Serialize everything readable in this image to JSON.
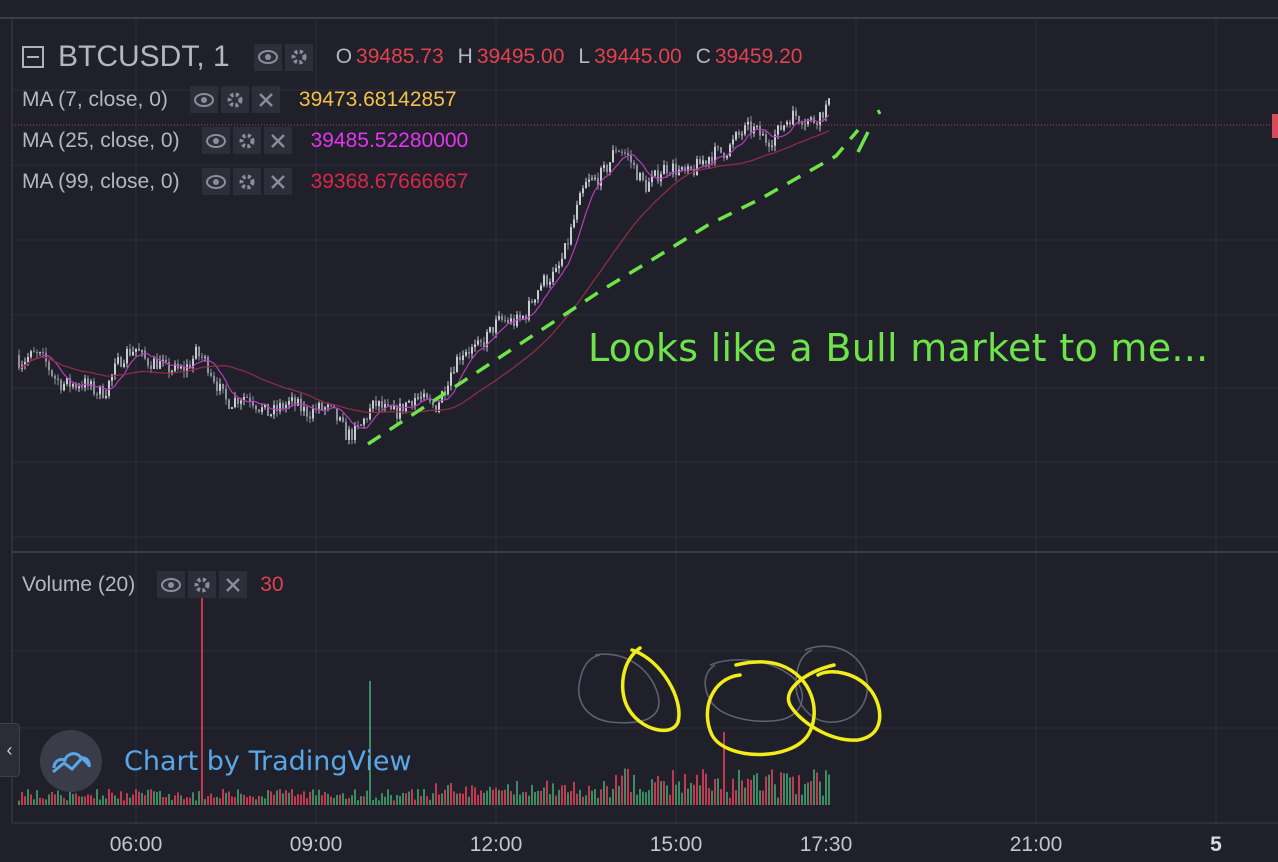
{
  "symbol": "BTCUSDT, 1",
  "ohlc": [
    {
      "label": "O",
      "value": "39485.73"
    },
    {
      "label": "H",
      "value": "39495.00"
    },
    {
      "label": "L",
      "value": "39445.00"
    },
    {
      "label": "C",
      "value": "39459.20"
    }
  ],
  "indicators": [
    {
      "name": "MA (7, close, 0)",
      "value": "39473.68142857",
      "color": "#f5c04a"
    },
    {
      "name": "MA (25, close, 0)",
      "value": "39485.52280000",
      "color": "#e535ef"
    },
    {
      "name": "MA (99, close, 0)",
      "value": "39368.67666667",
      "color": "#d8284a"
    }
  ],
  "volume": {
    "name": "Volume (20)",
    "value": "30",
    "color": "#e0424f"
  },
  "annotation": "Looks like a Bull market to me...",
  "watermark": "Chart by TradingView",
  "side_tab": "‹",
  "colors": {
    "background": "#1f2029",
    "up": "#3e8a62",
    "down": "#c23a4f",
    "annotation": "#6fe34a",
    "highlight": "#f2ec1b",
    "label_red": "#e0424f"
  },
  "chart_data": {
    "type": "candlestick",
    "x_ticks": [
      "06:00",
      "09:00",
      "12:00",
      "15:00",
      "17:30",
      "21:00",
      "5"
    ],
    "price_series": {
      "x_hours": [
        4.05,
        4.5,
        5.0,
        5.5,
        6.0,
        6.5,
        7.0,
        7.5,
        8.0,
        8.5,
        9.0,
        9.5,
        9.75,
        10.0,
        10.5,
        11.0,
        11.5,
        12.0,
        12.5,
        13.0,
        13.5,
        14.0,
        14.5,
        15.0,
        15.5,
        16.0,
        16.5,
        17.0,
        17.5
      ],
      "close": [
        39355,
        39345,
        39320,
        39325,
        39365,
        39335,
        39355,
        39315,
        39305,
        39300,
        39305,
        39280,
        39285,
        39300,
        39305,
        39310,
        39360,
        39380,
        39400,
        39440,
        39520,
        39560,
        39530,
        39540,
        39545,
        39575,
        39575,
        39590,
        39600
      ]
    },
    "moving_averages": [
      {
        "name": "MA (7, close, 0)"
      },
      {
        "name": "MA (25, close, 0)"
      },
      {
        "name": "MA (99, close, 0)"
      }
    ],
    "volume_series": {
      "name": "Volume (20)",
      "spikes": [
        {
          "x_hours": 7.1,
          "value": 30
        },
        {
          "x_hours": 9.9,
          "value": 17
        },
        {
          "x_hours": 15.8,
          "value": 10
        }
      ]
    },
    "grid": true
  }
}
